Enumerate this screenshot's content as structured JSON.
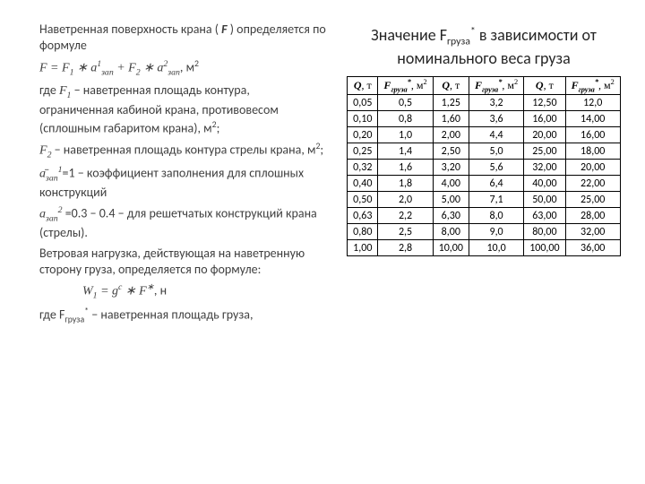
{
  "left": {
    "p1_a": "Наветренная поверхность крана ( ",
    "p1_F": "F",
    "p1_b": " ) определяется по формуле",
    "formula1_a": "F = F",
    "formula1_s1": "1",
    "formula1_b": " ∗ a",
    "formula1_sup1": "1",
    "formula1_sub1": "зап",
    "formula1_c": " + F",
    "formula1_s2": "2",
    "formula1_d": " ∗ a",
    "formula1_sup2": "2",
    "formula1_sub2": "зап",
    "formula1_e": ", м",
    "formula1_sq": "2",
    "p2_a": "где  ",
    "p2_F1": "F",
    "p2_F1s": "1",
    "p2_b": "  − наветренная площадь контура, ограниченная кабиной крана, противовесом (сплошным габаритом крана), м",
    "p2_sq": "2",
    "p2_c": ";",
    "p3_F2": "F",
    "p3_F2s": "2",
    "p3_a": " − наветренная площадь контура стрелы крана, м",
    "p3_sq": "2",
    "p3_b": ";",
    "p4_a": "а̄",
    "p4_sub": "зап",
    "p4_sup": "1",
    "p4_b": "=1  −  коэффициент заполнения для сплошных конструкций",
    "p5_a": "а",
    "p5_sub": "зап",
    "p5_sup": "2",
    "p5_b": " =0.3 − 0.4 − для решетчатых конструкций крана (стрелы).",
    "p6": "Ветровая нагрузка, действующая на наветренную сторону груза, определяется по формуле:",
    "formula2_a": "W",
    "formula2_s1": "1",
    "formula2_b": " = g",
    "formula2_sup": "c",
    "formula2_c": " ∗ F",
    "formula2_star": "∗",
    "formula2_d": ", н",
    "p7_a": "где F",
    "p7_sub": "груза",
    "p7_star": "*",
    "p7_b": "  − наветренная площадь груза,"
  },
  "right": {
    "caption_a": "Значение F",
    "caption_sub": "груза",
    "caption_star": "*",
    "caption_b": "   в зависимости от номинального веса груза"
  },
  "table": {
    "h_Q": "Q",
    "h_Q_unit": ", т",
    "h_F": "F",
    "h_F_sub": "груза",
    "h_F_star": "*",
    "h_F_unit": ", м",
    "h_F_sq": "2",
    "rows": [
      [
        "0,05",
        "0,5",
        "1,25",
        "3,2",
        "12,50",
        "12,0"
      ],
      [
        "0,10",
        "0,8",
        "1,60",
        "3,6",
        "16,00",
        "14,00"
      ],
      [
        "0,20",
        "1,0",
        "2,00",
        "4,4",
        "20,00",
        "16,00"
      ],
      [
        "0,25",
        "1,4",
        "2,50",
        "5,0",
        "25,00",
        "18,00"
      ],
      [
        "0,32",
        "1,6",
        "3,20",
        "5,6",
        "32,00",
        "20,00"
      ],
      [
        "0,40",
        "1,8",
        "4,00",
        "6,4",
        "40,00",
        "22,00"
      ],
      [
        "0,50",
        "2,0",
        "5,00",
        "7,1",
        "50,00",
        "25,00"
      ],
      [
        "0,63",
        "2,2",
        "6,30",
        "8,0",
        "63,00",
        "28,00"
      ],
      [
        "0,80",
        "2,5",
        "8,00",
        "9,0",
        "80,00",
        "32,00"
      ],
      [
        "1,00",
        "2,8",
        "10,00",
        "10,0",
        "100,00",
        "36,00"
      ]
    ]
  },
  "colors": {
    "text": "#3f3f3f",
    "caption": "#262626",
    "border": "#000000",
    "background": "#ffffff"
  },
  "typography": {
    "body_fontsize": 14,
    "caption_fontsize": 18,
    "table_fontsize": 12
  }
}
